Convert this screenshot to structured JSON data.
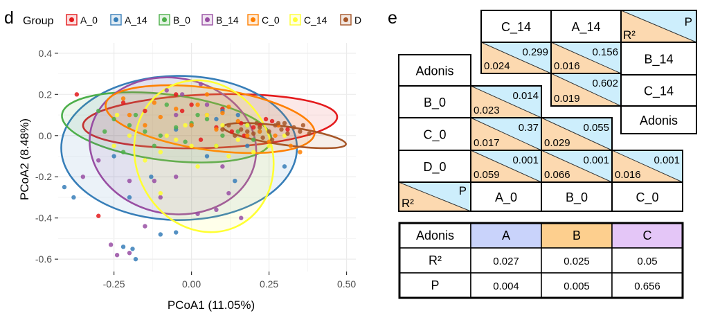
{
  "panel_d": {
    "label": "d",
    "legend_title": "Group",
    "x_axis_title": "PCoA1 (11.05%)",
    "y_axis_title": "PCoA2 (8.48%)"
  },
  "chart_data": {
    "type": "scatter",
    "xlabel": "PCoA1 (11.05%)",
    "ylabel": "PCoA2 (8.48%)",
    "xlim": [
      -0.43,
      0.53
    ],
    "ylim": [
      -0.66,
      0.45
    ],
    "x_ticks": [
      -0.25,
      0.0,
      0.25,
      0.5
    ],
    "x_tick_labels": [
      "-0.25",
      "0.00",
      "0.25",
      "0.50"
    ],
    "y_ticks": [
      0.4,
      0.2,
      0.0,
      -0.2,
      -0.4,
      -0.6
    ],
    "y_tick_labels": [
      "0.4",
      "0.2",
      "0.0",
      "-0.2",
      "-0.4",
      "-0.6"
    ],
    "grid": true,
    "legend_position": "top",
    "series": [
      {
        "name": "A_0",
        "color": "#e41a1c",
        "ellipse": {
          "cx": 0.06,
          "cy": 0.07,
          "rx": 0.41,
          "ry": 0.13,
          "angle": 2
        },
        "points": [
          [
            -0.37,
            0.2
          ],
          [
            -0.3,
            -0.39
          ],
          [
            -0.22,
            0.16
          ],
          [
            -0.15,
            0.12
          ],
          [
            -0.05,
            0.2
          ],
          [
            0.0,
            0.15
          ],
          [
            0.05,
            0.1
          ],
          [
            0.1,
            0.13
          ],
          [
            0.16,
            0.06
          ],
          [
            0.2,
            0.04
          ],
          [
            0.24,
            0.08
          ],
          [
            0.28,
            0.05
          ],
          [
            0.31,
            0.03
          ],
          [
            0.08,
            0.04
          ],
          [
            0.13,
            0.02
          ],
          [
            0.17,
            0.0
          ],
          [
            0.03,
            -0.02
          ],
          [
            -0.03,
            0.12
          ],
          [
            0.22,
            0.05
          ],
          [
            0.26,
            0.07
          ]
        ]
      },
      {
        "name": "A_14",
        "color": "#377eb8",
        "ellipse": {
          "cx": -0.04,
          "cy": -0.06,
          "rx": 0.38,
          "ry": 0.35,
          "angle": 0
        },
        "points": [
          [
            -0.41,
            -0.25
          ],
          [
            -0.38,
            -0.3
          ],
          [
            -0.22,
            -0.54
          ],
          [
            -0.18,
            -0.6
          ],
          [
            -0.19,
            -0.55
          ],
          [
            -0.1,
            -0.48
          ],
          [
            -0.05,
            -0.47
          ],
          [
            0.14,
            -0.22
          ],
          [
            0.05,
            -0.1
          ],
          [
            -0.2,
            -0.3
          ],
          [
            -0.13,
            -0.2
          ],
          [
            0.0,
            0.05
          ],
          [
            0.1,
            0.12
          ],
          [
            0.22,
            0.02
          ],
          [
            0.18,
            -0.05
          ],
          [
            -0.25,
            -0.1
          ],
          [
            0.3,
            -0.15
          ],
          [
            -0.05,
            0.03
          ],
          [
            0.08,
            0.08
          ],
          [
            0.15,
            0.1
          ]
        ]
      },
      {
        "name": "B_0",
        "color": "#4daf4a",
        "ellipse": {
          "cx": -0.08,
          "cy": 0.04,
          "rx": 0.34,
          "ry": 0.16,
          "angle": -7
        },
        "points": [
          [
            -0.3,
            0.12
          ],
          [
            -0.25,
            0.08
          ],
          [
            -0.2,
            0.05
          ],
          [
            -0.15,
            0.02
          ],
          [
            -0.1,
            0.0
          ],
          [
            -0.05,
            0.04
          ],
          [
            0.0,
            0.06
          ],
          [
            0.05,
            0.08
          ],
          [
            -0.28,
            0.02
          ],
          [
            -0.18,
            0.1
          ],
          [
            -0.08,
            0.15
          ],
          [
            0.02,
            0.1
          ],
          [
            0.1,
            0.0
          ],
          [
            0.15,
            0.02
          ],
          [
            0.2,
            -0.02
          ],
          [
            -0.12,
            -0.05
          ],
          [
            -0.22,
            -0.08
          ],
          [
            0.08,
            -0.05
          ],
          [
            0.18,
            0.05
          ],
          [
            -0.02,
            -0.03
          ]
        ]
      },
      {
        "name": "B_14",
        "color": "#984ea3",
        "ellipse": {
          "cx": -0.06,
          "cy": -0.05,
          "rx": 0.27,
          "ry": 0.33,
          "angle": -10
        },
        "points": [
          [
            -0.26,
            -0.53
          ],
          [
            -0.24,
            -0.58
          ],
          [
            -0.2,
            -0.57
          ],
          [
            -0.15,
            -0.44
          ],
          [
            -0.1,
            -0.3
          ],
          [
            -0.05,
            -0.2
          ],
          [
            0.02,
            -0.38
          ],
          [
            0.08,
            -0.36
          ],
          [
            0.16,
            -0.4
          ],
          [
            -0.35,
            -0.2
          ],
          [
            -0.3,
            -0.12
          ],
          [
            0.1,
            -0.15
          ],
          [
            0.12,
            -0.28
          ],
          [
            -0.08,
            0.22
          ],
          [
            -0.03,
            0.2
          ],
          [
            0.03,
            0.25
          ],
          [
            -0.2,
            -0.22
          ],
          [
            -0.12,
            -0.22
          ],
          [
            0.05,
            0.15
          ],
          [
            -0.05,
            0.1
          ]
        ]
      },
      {
        "name": "C_0",
        "color": "#ff7f00",
        "ellipse": {
          "cx": 0.06,
          "cy": 0.08,
          "rx": 0.34,
          "ry": 0.15,
          "angle": -8
        },
        "points": [
          [
            -0.22,
            0.18
          ],
          [
            -0.12,
            0.16
          ],
          [
            -0.05,
            0.13
          ],
          [
            0.02,
            0.15
          ],
          [
            0.1,
            0.11
          ],
          [
            0.15,
            0.07
          ],
          [
            0.22,
            0.02
          ],
          [
            0.27,
            0.0
          ],
          [
            0.32,
            -0.05
          ],
          [
            0.35,
            -0.08
          ],
          [
            -0.1,
            0.09
          ],
          [
            0.0,
            0.05
          ],
          [
            0.08,
            0.03
          ],
          [
            0.18,
            0.0
          ],
          [
            0.25,
            -0.03
          ],
          [
            -0.2,
            0.1
          ],
          [
            0.12,
            0.14
          ],
          [
            0.05,
            0.2
          ],
          [
            -0.15,
            0.05
          ],
          [
            0.28,
            0.05
          ]
        ]
      },
      {
        "name": "C_14",
        "color": "#ffff33",
        "ellipse": {
          "cx": 0.04,
          "cy": -0.1,
          "rx": 0.25,
          "ry": 0.33,
          "angle": -65
        },
        "points": [
          [
            -0.24,
            0.1
          ],
          [
            -0.2,
            0.0
          ],
          [
            -0.1,
            -0.08
          ],
          [
            -0.05,
            -0.02
          ],
          [
            0.02,
            -0.15
          ],
          [
            0.08,
            -0.05
          ],
          [
            0.15,
            -0.02
          ],
          [
            0.2,
            -0.08
          ],
          [
            -0.15,
            -0.12
          ],
          [
            -0.1,
            -0.28
          ],
          [
            0.1,
            0.05
          ],
          [
            0.25,
            -0.05
          ],
          [
            -0.25,
            -0.05
          ],
          [
            0.05,
            0.1
          ],
          [
            -0.02,
            0.05
          ],
          [
            0.18,
            0.05
          ],
          [
            0.3,
            0.0
          ],
          [
            0.12,
            -0.1
          ],
          [
            -0.08,
            0.0
          ],
          [
            0.0,
            -0.05
          ]
        ]
      },
      {
        "name": "D",
        "color": "#a65628",
        "ellipse": {
          "cx": 0.3,
          "cy": 0.0,
          "rx": 0.2,
          "ry": 0.045,
          "angle": -8
        },
        "points": [
          [
            0.18,
            0.02
          ],
          [
            0.2,
            0.01
          ],
          [
            0.22,
            0.04
          ],
          [
            0.25,
            0.02
          ],
          [
            0.27,
            0.05
          ],
          [
            0.29,
            0.03
          ],
          [
            0.31,
            0.01
          ],
          [
            0.33,
            0.04
          ],
          [
            0.35,
            0.02
          ],
          [
            0.12,
            0.05
          ],
          [
            0.14,
            0.0
          ],
          [
            0.38,
            0.01
          ],
          [
            0.23,
            -0.01
          ],
          [
            0.28,
            0.06
          ],
          [
            0.16,
            0.03
          ],
          [
            0.3,
            0.06
          ],
          [
            0.36,
            0.05
          ],
          [
            0.1,
            0.03
          ],
          [
            0.21,
            0.06
          ],
          [
            0.26,
            -0.02
          ]
        ]
      }
    ]
  },
  "panel_e": {
    "label": "e",
    "adonis_label": "Adonis",
    "r2_symbol": "R²",
    "p_symbol": "P",
    "upper_headers": [
      "C_14",
      "A_14"
    ],
    "upper_row_labels": [
      "B_14",
      "C_14"
    ],
    "upper_cells": [
      {
        "col": "C_14",
        "row": "B_14",
        "r2": "0.024",
        "p": "0.299"
      },
      {
        "col": "A_14",
        "row": "B_14",
        "r2": "0.016",
        "p": "0.156"
      },
      {
        "col": "A_14",
        "row": "C_14",
        "r2": "0.019",
        "p": "0.602"
      }
    ],
    "lower_row_labels": [
      "B_0",
      "C_0",
      "D_0"
    ],
    "lower_col_labels": [
      "A_0",
      "B_0",
      "C_0"
    ],
    "lower_cells": [
      {
        "row": "B_0",
        "col": "A_0",
        "r2": "0.023",
        "p": "0.014"
      },
      {
        "row": "C_0",
        "col": "A_0",
        "r2": "0.017",
        "p": "0.37"
      },
      {
        "row": "C_0",
        "col": "B_0",
        "r2": "0.029",
        "p": "0.055"
      },
      {
        "row": "D_0",
        "col": "A_0",
        "r2": "0.059",
        "p": "0.001"
      },
      {
        "row": "D_0",
        "col": "B_0",
        "r2": "0.066",
        "p": "0.001"
      },
      {
        "row": "D_0",
        "col": "C_0",
        "r2": "0.016",
        "p": "0.001"
      }
    ],
    "summary_table": {
      "corner": "Adonis",
      "columns": [
        "A",
        "B",
        "C"
      ],
      "rows": [
        {
          "label": "R²",
          "values": [
            "0.027",
            "0.025",
            "0.05"
          ]
        },
        {
          "label": "P",
          "values": [
            "0.004",
            "0.005",
            "0.656"
          ]
        }
      ]
    },
    "colors": {
      "r2_fill": "#fcd9b0",
      "p_fill": "#cdeefc",
      "col_a": "#c9d3fb",
      "col_b": "#fdcf8e",
      "col_c": "#e4c6f7"
    }
  }
}
